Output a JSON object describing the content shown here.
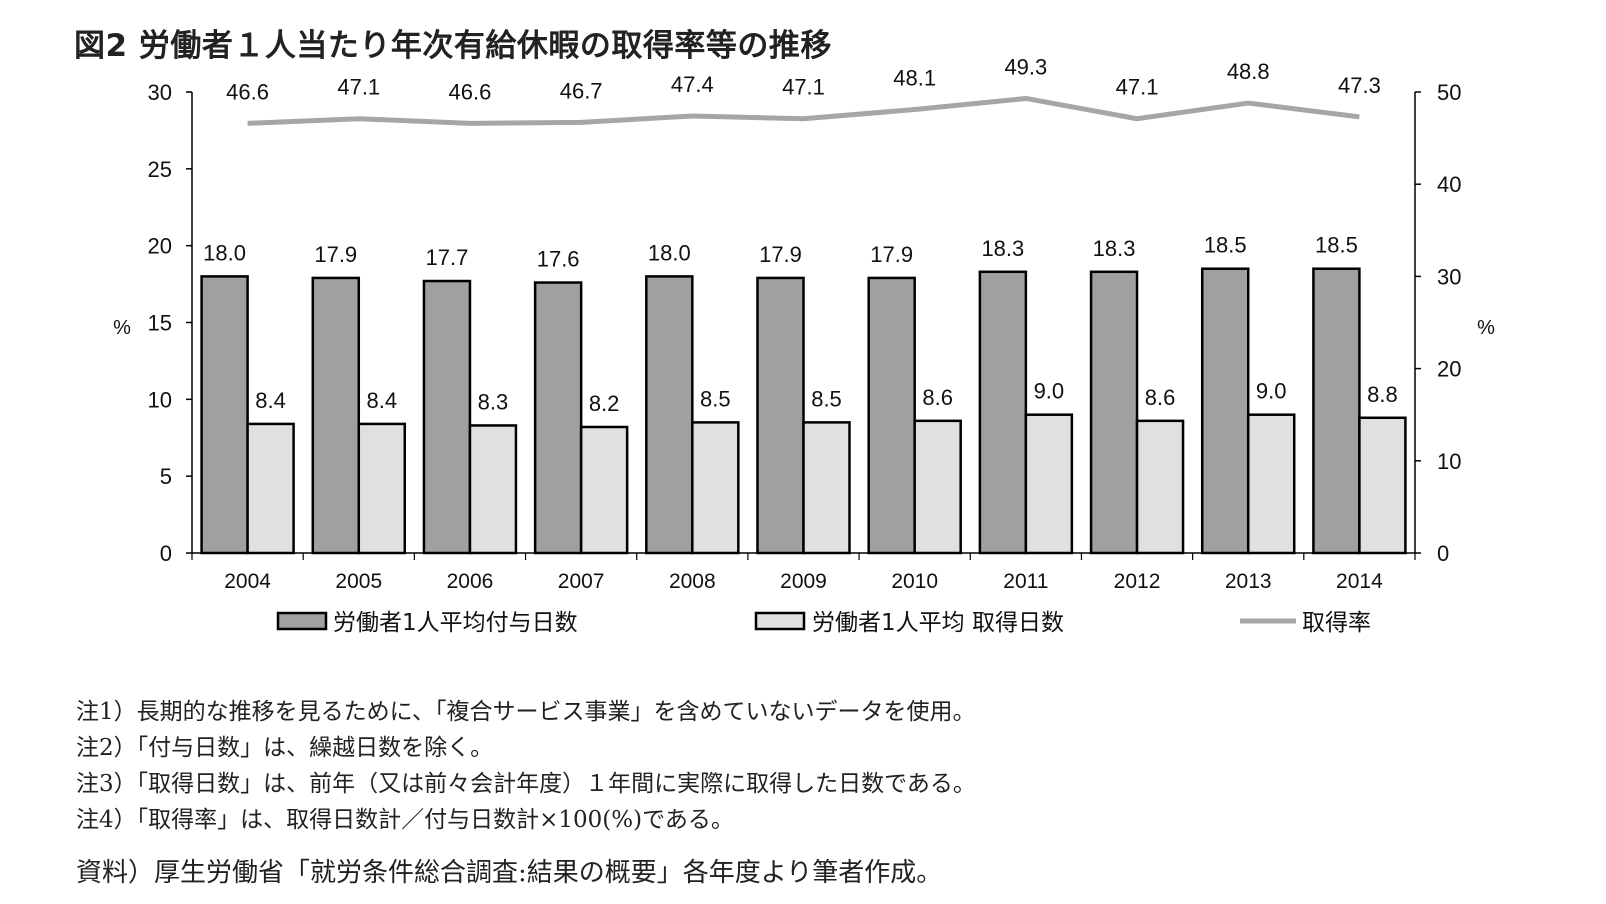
{
  "title": "図2 労働者１人当たり年次有給休暇の取得率等の推移",
  "chart_data": {
    "type": "bar",
    "categories": [
      "2004",
      "2005",
      "2006",
      "2007",
      "2008",
      "2009",
      "2010",
      "2011",
      "2012",
      "2013",
      "2014"
    ],
    "series": [
      {
        "name": "労働者1人平均付与日数",
        "type": "bar",
        "axis": "left",
        "color": "#a0a0a0",
        "values": [
          18.0,
          17.9,
          17.7,
          17.6,
          18.0,
          17.9,
          17.9,
          18.3,
          18.3,
          18.5,
          18.5
        ],
        "labels": [
          "18.0",
          "17.9",
          "17.7",
          "17.6",
          "18.0",
          "17.9",
          "17.9",
          "18.3",
          "18.3",
          "18.5",
          "18.5"
        ]
      },
      {
        "name": "労働者1人平均 取得日数",
        "type": "bar",
        "axis": "left",
        "color": "#e0e0e0",
        "values": [
          8.4,
          8.4,
          8.3,
          8.2,
          8.5,
          8.5,
          8.6,
          9.0,
          8.6,
          9.0,
          8.8
        ],
        "labels": [
          "8.4",
          "8.4",
          "8.3",
          "8.2",
          "8.5",
          "8.5",
          "8.6",
          "9.0",
          "8.6",
          "9.0",
          "8.8"
        ]
      },
      {
        "name": "取得率",
        "type": "line",
        "axis": "right",
        "color": "#a6a6a6",
        "values": [
          46.6,
          47.1,
          46.6,
          46.7,
          47.4,
          47.1,
          48.1,
          49.3,
          47.1,
          48.8,
          47.3
        ],
        "labels": [
          "46.6",
          "47.1",
          "46.6",
          "46.7",
          "47.4",
          "47.1",
          "48.1",
          "49.3",
          "47.1",
          "48.8",
          "47.3"
        ]
      }
    ],
    "ylabel_left": "%",
    "ylabel_right": "%",
    "ylim_left": [
      0,
      30
    ],
    "ylim_right": [
      0,
      50
    ],
    "yticks_left": [
      "0",
      "5",
      "10",
      "15",
      "20",
      "25",
      "30"
    ],
    "yticks_right": [
      "0",
      "10",
      "20",
      "30",
      "40",
      "50"
    ],
    "grid": false,
    "legend_position": "bottom"
  },
  "notes": [
    "注1）長期的な推移を見るために、「複合サービス事業」を含めていないデータを使用。",
    "注2）「付与日数」は、繰越日数を除く。",
    "注3）「取得日数」は、前年（又は前々会計年度）１年間に実際に取得した日数である。",
    "注4）「取得率」は、取得日数計／付与日数計×100(%)である。"
  ],
  "source": "資料）厚生労働省「就労条件総合調査:結果の概要」各年度より筆者作成。"
}
